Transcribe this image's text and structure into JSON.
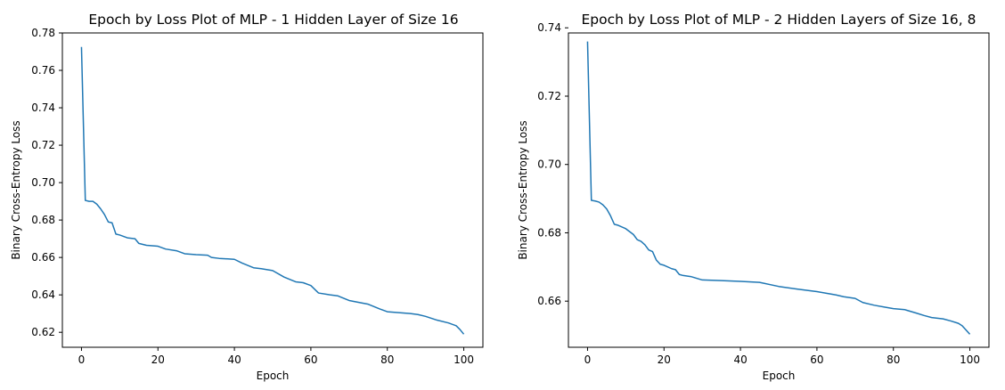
{
  "chart_data": [
    {
      "type": "line",
      "title": "Epoch by Loss Plot of MLP - 1 Hidden Layer of Size 16",
      "xlabel": "Epoch",
      "ylabel": "Binary Cross-Entropy Loss",
      "xlim": [
        -5,
        105
      ],
      "ylim": [
        0.612,
        0.78
      ],
      "xticks": [
        0,
        20,
        40,
        60,
        80,
        100
      ],
      "yticks": [
        0.62,
        0.64,
        0.66,
        0.68,
        0.7,
        0.72,
        0.74,
        0.76,
        0.78
      ],
      "ytick_labels": [
        "0.62",
        "0.64",
        "0.66",
        "0.68",
        "0.70",
        "0.72",
        "0.74",
        "0.76",
        "0.78"
      ],
      "line_color": "#1f77b4",
      "series": [
        {
          "x": [
            0,
            1,
            2,
            3,
            4,
            5,
            6,
            7,
            8,
            9,
            10,
            12,
            14,
            15,
            17,
            20,
            22,
            25,
            27,
            30,
            33,
            34,
            36,
            40,
            42,
            45,
            47,
            50,
            53,
            56,
            58,
            60,
            62,
            65,
            67,
            70,
            73,
            75,
            78,
            80,
            83,
            86,
            88,
            90,
            93,
            96,
            98,
            99,
            100
          ],
          "y": [
            0.7725,
            0.6905,
            0.69,
            0.69,
            0.6885,
            0.686,
            0.683,
            0.679,
            0.6785,
            0.6725,
            0.672,
            0.6705,
            0.67,
            0.6675,
            0.6665,
            0.666,
            0.6645,
            0.6635,
            0.662,
            0.6615,
            0.6612,
            0.66,
            0.6595,
            0.659,
            0.657,
            0.6545,
            0.654,
            0.653,
            0.6495,
            0.647,
            0.6465,
            0.645,
            0.641,
            0.64,
            0.6395,
            0.637,
            0.6358,
            0.635,
            0.6325,
            0.631,
            0.6305,
            0.63,
            0.6295,
            0.6285,
            0.6265,
            0.625,
            0.6235,
            0.6215,
            0.619
          ]
        }
      ]
    },
    {
      "type": "line",
      "title": "Epoch by Loss Plot of MLP - 2 Hidden Layers of Size 16, 8",
      "xlabel": "Epoch",
      "ylabel": "Binary Cross-Entropy Loss",
      "xlim": [
        -5,
        105
      ],
      "ylim": [
        0.6465,
        0.7385
      ],
      "xticks": [
        0,
        20,
        40,
        60,
        80,
        100
      ],
      "yticks": [
        0.66,
        0.68,
        0.7,
        0.72,
        0.74
      ],
      "ytick_labels": [
        "0.66",
        "0.68",
        "0.70",
        "0.72",
        "0.74"
      ],
      "line_color": "#1f77b4",
      "series": [
        {
          "x": [
            0,
            1,
            2,
            3,
            4,
            5,
            6,
            7,
            8,
            10,
            12,
            13,
            14,
            15,
            16,
            17,
            18,
            19,
            20,
            22,
            23,
            24,
            25,
            27,
            30,
            35,
            40,
            45,
            50,
            55,
            60,
            65,
            67,
            70,
            72,
            75,
            78,
            80,
            83,
            86,
            88,
            90,
            93,
            95,
            97,
            98,
            100
          ],
          "y": [
            0.736,
            0.6895,
            0.6893,
            0.689,
            0.6882,
            0.687,
            0.685,
            0.6825,
            0.6822,
            0.6812,
            0.6795,
            0.678,
            0.6775,
            0.6765,
            0.675,
            0.6745,
            0.672,
            0.6708,
            0.6705,
            0.6695,
            0.6692,
            0.6678,
            0.6675,
            0.6672,
            0.6662,
            0.666,
            0.6658,
            0.6655,
            0.6643,
            0.6635,
            0.6628,
            0.6618,
            0.6613,
            0.6608,
            0.6596,
            0.6588,
            0.6582,
            0.6578,
            0.6575,
            0.6565,
            0.6558,
            0.6552,
            0.6548,
            0.6542,
            0.6535,
            0.6528,
            0.6503
          ]
        }
      ]
    }
  ]
}
